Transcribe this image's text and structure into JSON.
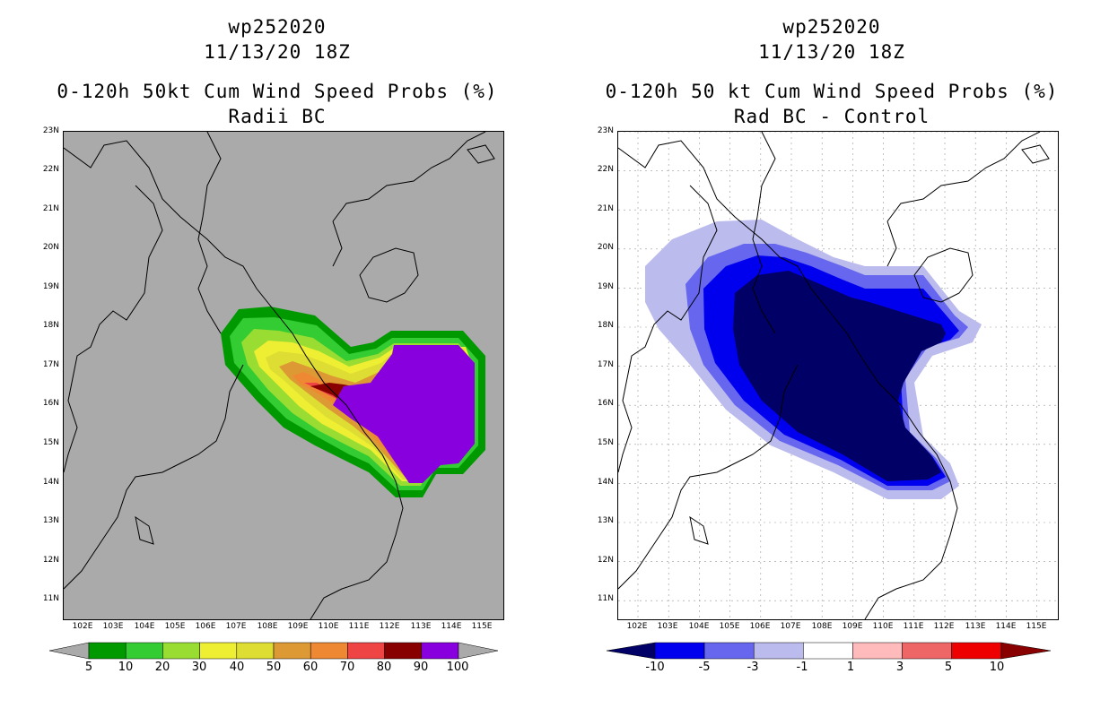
{
  "left": {
    "storm_id": "wp252020",
    "datetime": "11/13/20 18Z",
    "title": "0-120h 50kt Cum Wind Speed Probs (%)",
    "subtitle": "Radii BC",
    "colorbar_labels": [
      "5",
      "10",
      "20",
      "30",
      "40",
      "50",
      "60",
      "70",
      "80",
      "90",
      "100"
    ],
    "colorbar_colors": [
      "#009900",
      "#33cc33",
      "#99dd33",
      "#eeee33",
      "#dddd33",
      "#dd9933",
      "#ee8833",
      "#ee4444",
      "#880000",
      "#8800dd"
    ],
    "background": "#aaaaaa"
  },
  "right": {
    "storm_id": "wp252020",
    "datetime": "11/13/20 18Z",
    "title": "0-120h 50 kt Cum Wind Speed Probs (%)",
    "subtitle": "Rad BC - Control",
    "colorbar_labels": [
      "-10",
      "-5",
      "-3",
      "-1",
      "1",
      "3",
      "5",
      "10"
    ],
    "colorbar_colors": [
      "#000066",
      "#0000ee",
      "#6666ee",
      "#bbbbee",
      "#ffffff",
      "#ffbbbb",
      "#ee6666",
      "#ee0000",
      "#880000"
    ],
    "background": "#ffffff"
  },
  "axes": {
    "lat_labels": [
      "23N",
      "22N",
      "21N",
      "20N",
      "19N",
      "18N",
      "17N",
      "16N",
      "15N",
      "14N",
      "13N",
      "12N",
      "11N"
    ],
    "lon_labels": [
      "102E",
      "103E",
      "104E",
      "105E",
      "106E",
      "107E",
      "108E",
      "109E",
      "110E",
      "111E",
      "112E",
      "113E",
      "114E",
      "115E"
    ]
  },
  "chart_data": {
    "type": "map-contour",
    "region": {
      "lat_range": [
        10.5,
        23
      ],
      "lon_range": [
        101.5,
        115
      ]
    },
    "left_levels": [
      5,
      10,
      20,
      30,
      40,
      50,
      60,
      70,
      80,
      90,
      100
    ],
    "right_levels": [
      -10,
      -5,
      -3,
      -1,
      1,
      3,
      5,
      10
    ]
  }
}
